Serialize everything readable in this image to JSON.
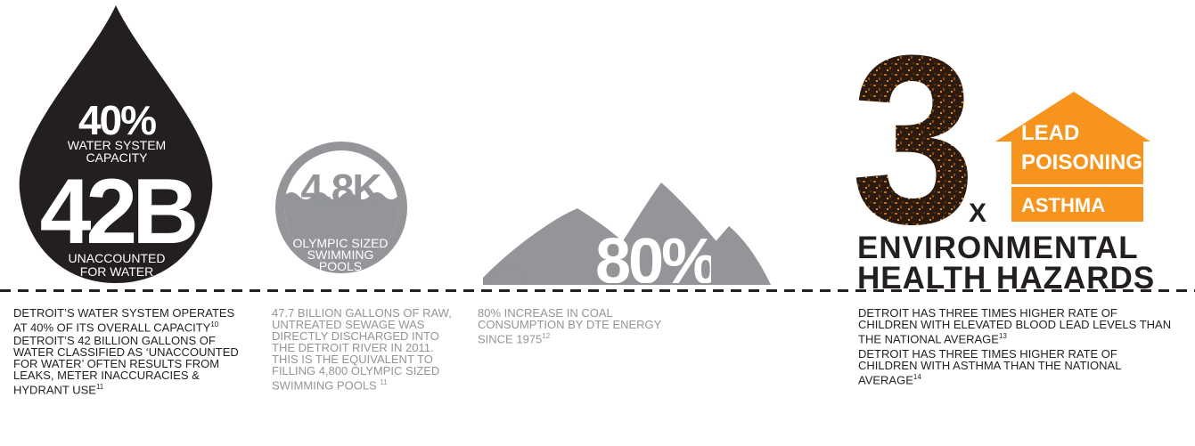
{
  "water": {
    "capacity_value": "40%",
    "capacity_label_1": "WATER SYSTEM",
    "capacity_label_2": "CAPACITY",
    "unaccounted_value": "42B",
    "unaccounted_label_1": "UNACCOUNTED",
    "unaccounted_label_2": "FOR WATER",
    "caption_1": "Detroit’s water system operates at 40% of its overall capacity",
    "caption_1_ref": "10",
    "caption_2": "Detroit’s 42 billion gallons of water classified as ‘unaccounted for water’ often results from leaks, meter inaccuracies & hydrant use",
    "caption_2_ref": "11"
  },
  "sewage": {
    "pools_value": "4.8K",
    "pools_label_1": "OLYMPIC SIZED",
    "pools_label_2": "SWIMMING",
    "pools_label_3": "POOLS",
    "caption": "47.7 billion gallons of raw, untreated sewage was directly discharged into the Detroit River in 2011. This is the equivalent to filling 4,800 olympic sized swimming pools",
    "caption_ref": "11"
  },
  "coal": {
    "increase_value": "80%",
    "caption": "80% increase in coal consumption by DTE energy since 1975",
    "caption_ref": "12"
  },
  "health": {
    "multiplier": "3",
    "multiplier_suffix": "X",
    "hazard_1a": "LEAD",
    "hazard_1b": "POISONING",
    "hazard_2": "ASTHMA",
    "title_1": "ENVIRONMENTAL",
    "title_2": "HEALTH HAZARDS",
    "caption_1": "Detroit has three times higher rate of children with elevated blood lead levels than the national average",
    "caption_1_ref": "13",
    "caption_2": "Detroit has three times higher rate of children with asthma than the national average",
    "caption_2_ref": "14"
  },
  "colors": {
    "dark": "#231f20",
    "grey": "#939598",
    "orange": "#f7941d",
    "white": "#ffffff"
  }
}
